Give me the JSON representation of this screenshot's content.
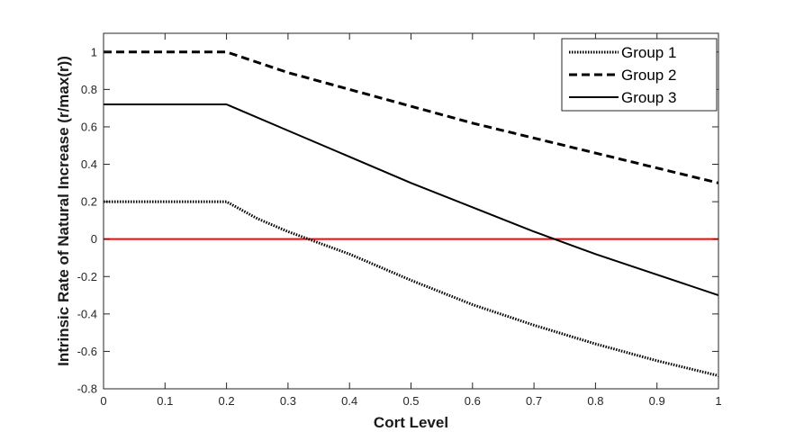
{
  "chart_data": {
    "type": "line",
    "title": "",
    "xlabel": "Cort Level",
    "ylabel": "Intrinsic Rate of Natural Increase (r/max(r))",
    "xlim": [
      0,
      1
    ],
    "ylim": [
      -0.8,
      1.1
    ],
    "xticks": [
      "0",
      "0.1",
      "0.2",
      "0.3",
      "0.4",
      "0.5",
      "0.6",
      "0.7",
      "0.8",
      "0.9",
      "1"
    ],
    "yticks": [
      "-0.8",
      "-0.6",
      "-0.4",
      "-0.2",
      "0",
      "0.2",
      "0.4",
      "0.6",
      "0.8",
      "1"
    ],
    "grid": false,
    "legend_position": "top-right",
    "series": [
      {
        "name": "Group 1",
        "style": "dotted",
        "color": "#000000",
        "x": [
          0,
          0.1,
          0.2,
          0.25,
          0.3,
          0.35,
          0.4,
          0.5,
          0.6,
          0.7,
          0.8,
          0.9,
          1.0
        ],
        "y": [
          0.2,
          0.2,
          0.2,
          0.11,
          0.04,
          -0.02,
          -0.08,
          -0.22,
          -0.35,
          -0.46,
          -0.56,
          -0.65,
          -0.73
        ]
      },
      {
        "name": "Group 2",
        "style": "dashed",
        "color": "#000000",
        "x": [
          0,
          0.1,
          0.2,
          0.3,
          0.4,
          0.5,
          0.6,
          0.7,
          0.8,
          0.9,
          1.0
        ],
        "y": [
          1.0,
          1.0,
          1.0,
          0.89,
          0.8,
          0.71,
          0.62,
          0.54,
          0.46,
          0.38,
          0.3
        ]
      },
      {
        "name": "Group 3",
        "style": "solid",
        "color": "#000000",
        "x": [
          0,
          0.1,
          0.2,
          0.3,
          0.4,
          0.5,
          0.6,
          0.7,
          0.8,
          0.9,
          1.0
        ],
        "y": [
          0.72,
          0.72,
          0.72,
          0.58,
          0.44,
          0.3,
          0.17,
          0.04,
          -0.08,
          -0.19,
          -0.3
        ]
      }
    ],
    "reference_line": {
      "y": 0,
      "color": "#ff0000"
    }
  }
}
